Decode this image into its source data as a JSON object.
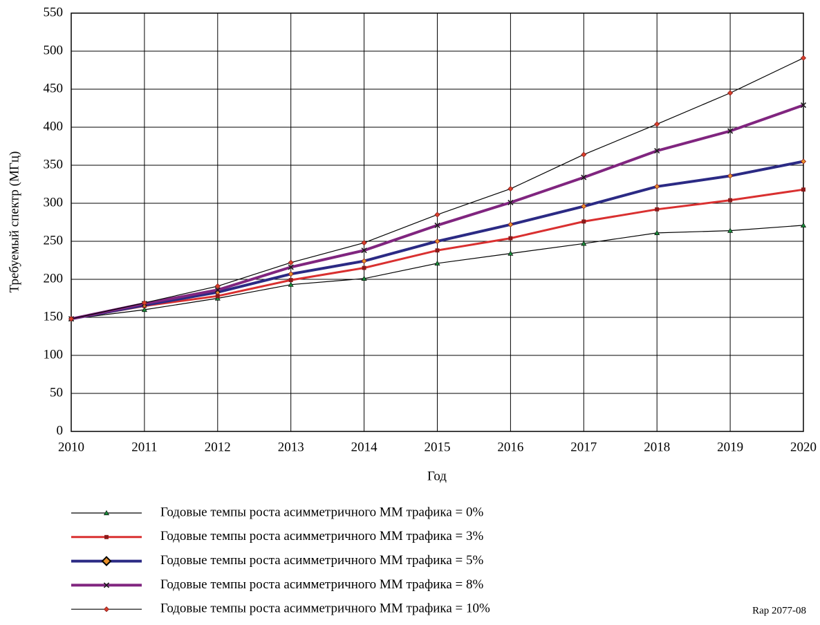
{
  "chart_data": {
    "type": "line",
    "y_label": "Требуемый спектр (МГц)",
    "x_label": "Год",
    "note": "Rap 2077-08",
    "x": [
      2010,
      2011,
      2012,
      2013,
      2014,
      2015,
      2016,
      2017,
      2018,
      2019,
      2020
    ],
    "xlim": [
      2010,
      2020
    ],
    "xticks": [
      2010,
      2011,
      2012,
      2013,
      2014,
      2015,
      2016,
      2017,
      2018,
      2019,
      2020
    ],
    "ylim": [
      0,
      550
    ],
    "yticks": [
      0,
      50,
      100,
      150,
      200,
      250,
      300,
      350,
      400,
      450,
      500,
      550
    ],
    "grid": true,
    "series": [
      {
        "name": "Годовые темпы роста асимметричного ММ трафика = 0%",
        "color": "#000000",
        "marker": "triangle",
        "marker_color": "#1a8a3a",
        "values": [
          148,
          160,
          175,
          193,
          201,
          221,
          234,
          247,
          261,
          264,
          271
        ]
      },
      {
        "name": "Годовые темпы роста асимметричного ММ трафика = 3%",
        "color": "#d93030",
        "marker": "square",
        "marker_color": "#8a1a1a",
        "values": [
          148,
          165,
          178,
          199,
          215,
          238,
          254,
          276,
          292,
          304,
          318
        ]
      },
      {
        "name": "Годовые темпы роста асимметричного ММ трафика = 5%",
        "color": "#2b2a84",
        "marker": "diamond",
        "marker_color": "#e8902a",
        "values": [
          148,
          166,
          183,
          207,
          224,
          250,
          272,
          296,
          322,
          336,
          355
        ]
      },
      {
        "name": "Годовые темпы роста асимметричного ММ трафика = 8%",
        "color": "#80257f",
        "marker": "x",
        "marker_color": "#1a1a1a",
        "values": [
          148,
          168,
          186,
          216,
          238,
          271,
          301,
          334,
          369,
          395,
          429
        ]
      },
      {
        "name": "Годовые темпы роста асимметричного ММ трафика = 10%",
        "color": "#000000",
        "marker": "diamond",
        "marker_color": "#d9402a",
        "values": [
          148,
          169,
          191,
          222,
          248,
          285,
          319,
          364,
          404,
          445,
          491
        ]
      }
    ]
  }
}
